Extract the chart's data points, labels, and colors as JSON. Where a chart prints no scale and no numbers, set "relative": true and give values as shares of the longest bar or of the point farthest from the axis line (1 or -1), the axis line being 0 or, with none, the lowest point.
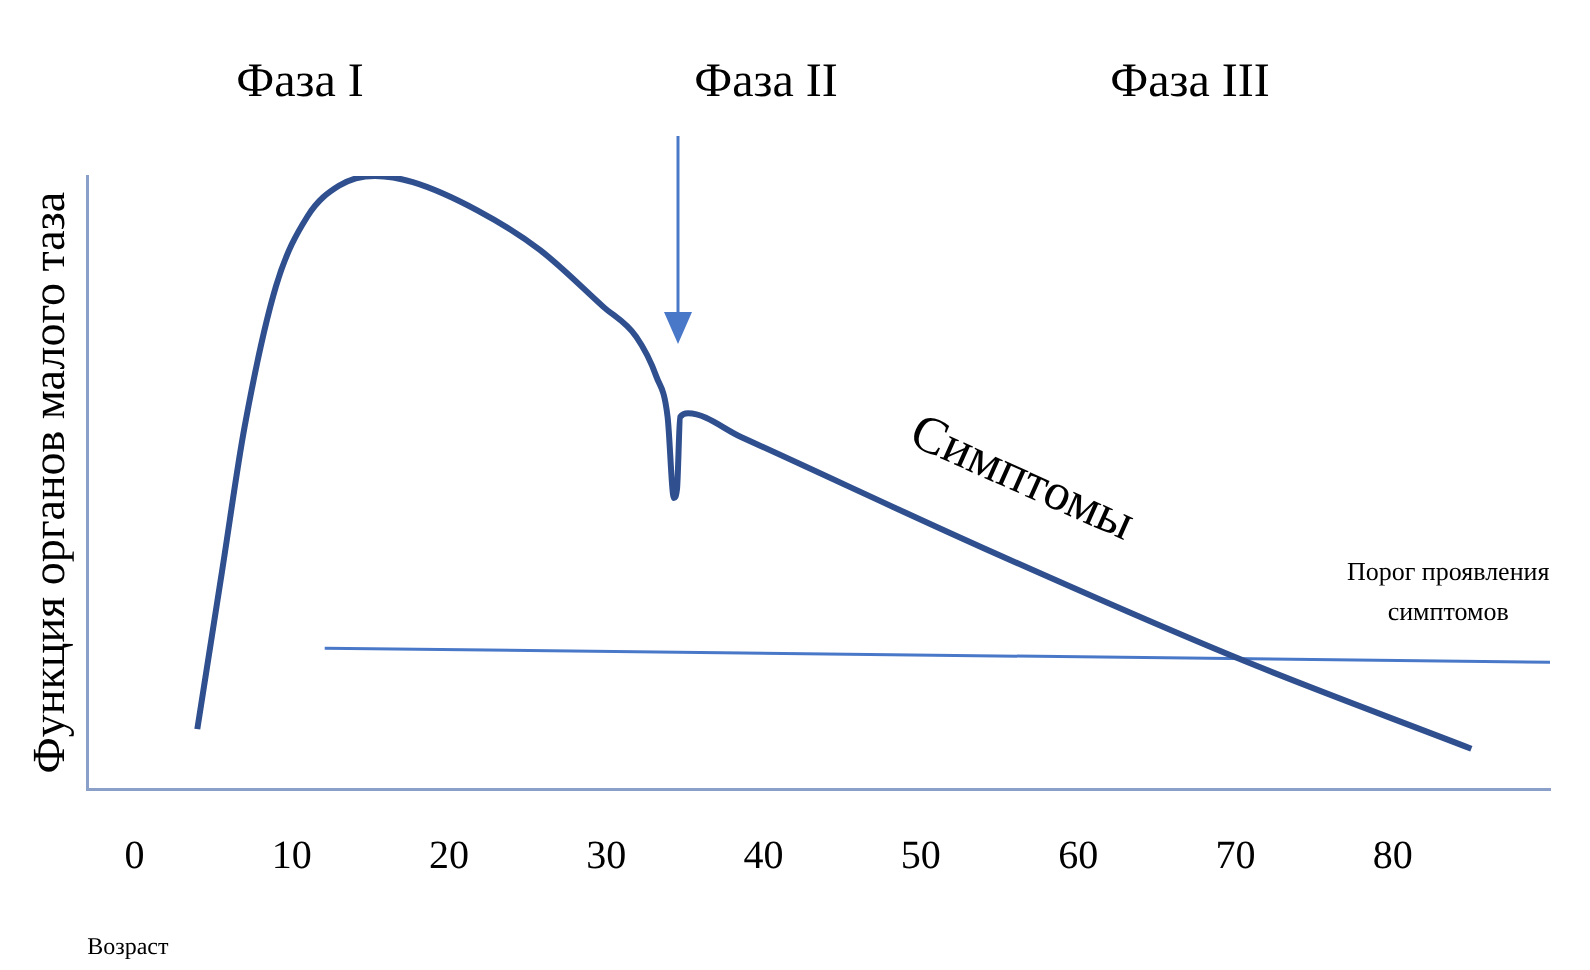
{
  "chart_data": {
    "type": "line",
    "relative": true,
    "xlabel": "Возраст",
    "ylabel": "Функция органов малого таза",
    "xlim": [
      -3,
      90
    ],
    "xticks": [
      0,
      10,
      20,
      30,
      40,
      50,
      60,
      70,
      80
    ],
    "grid": false,
    "legend": false,
    "marker": "none",
    "line_style": "solid",
    "series": [
      {
        "color": "#2f4f8f",
        "x": [
          4.0,
          5.6,
          7.0,
          9.0,
          11.0,
          13.0,
          15.3,
          17.7,
          21.8,
          25.8,
          29.8,
          31.9,
          33.2,
          33.9,
          34.3,
          34.5,
          34.7,
          35.2,
          38.6,
          54.0,
          70.2,
          85.0
        ],
        "values": [
          0.098,
          0.36,
          0.59,
          0.82,
          0.934,
          0.984,
          1.0,
          0.99,
          0.944,
          0.879,
          0.787,
          0.738,
          0.672,
          0.607,
          0.475,
          0.49,
          0.607,
          0.613,
          0.574,
          0.393,
          0.213,
          0.066
        ]
      },
      {
        "color": "#4a78c8",
        "x": [
          12.1,
          90
        ],
        "values": [
          0.23,
          0.207
        ]
      }
    ],
    "annotations": [
      "Фаза I",
      "Фаза II",
      "Фаза III",
      "Симптомы",
      {
        "text": "Порог проявления симптомов",
        "x": 82,
        "y": 0.21
      }
    ]
  }
}
